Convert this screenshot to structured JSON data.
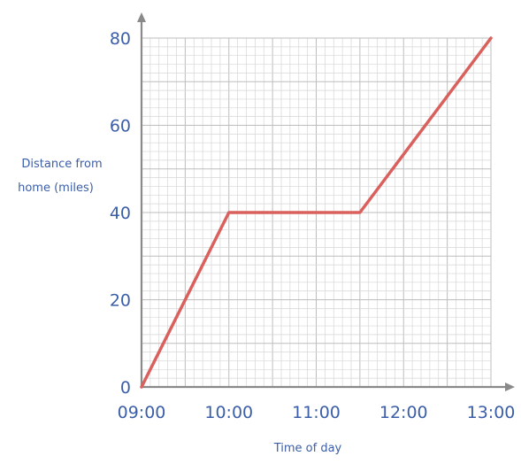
{
  "chart_data": {
    "type": "line",
    "title": "",
    "xlabel": "Time of day",
    "ylabel_lines": [
      "Distance from",
      "home (miles)"
    ],
    "x_ticks": [
      "09:00",
      "10:00",
      "11:00",
      "12:00",
      "13:00"
    ],
    "y_ticks": [
      0,
      20,
      40,
      60,
      80
    ],
    "xlim": [
      "09:00",
      "13:00"
    ],
    "ylim": [
      0,
      80
    ],
    "grid": true,
    "series": [
      {
        "color": "#d9605c",
        "points": [
          {
            "x": "09:00",
            "y": 0
          },
          {
            "x": "10:00",
            "y": 40
          },
          {
            "x": "11:30",
            "y": 40
          },
          {
            "x": "13:00",
            "y": 80
          }
        ]
      }
    ],
    "colors": {
      "axis": "#8a8a8a",
      "grid": "#d6d6d6",
      "grid_major": "#bdbdbd",
      "text": "#3b5ea8"
    }
  }
}
